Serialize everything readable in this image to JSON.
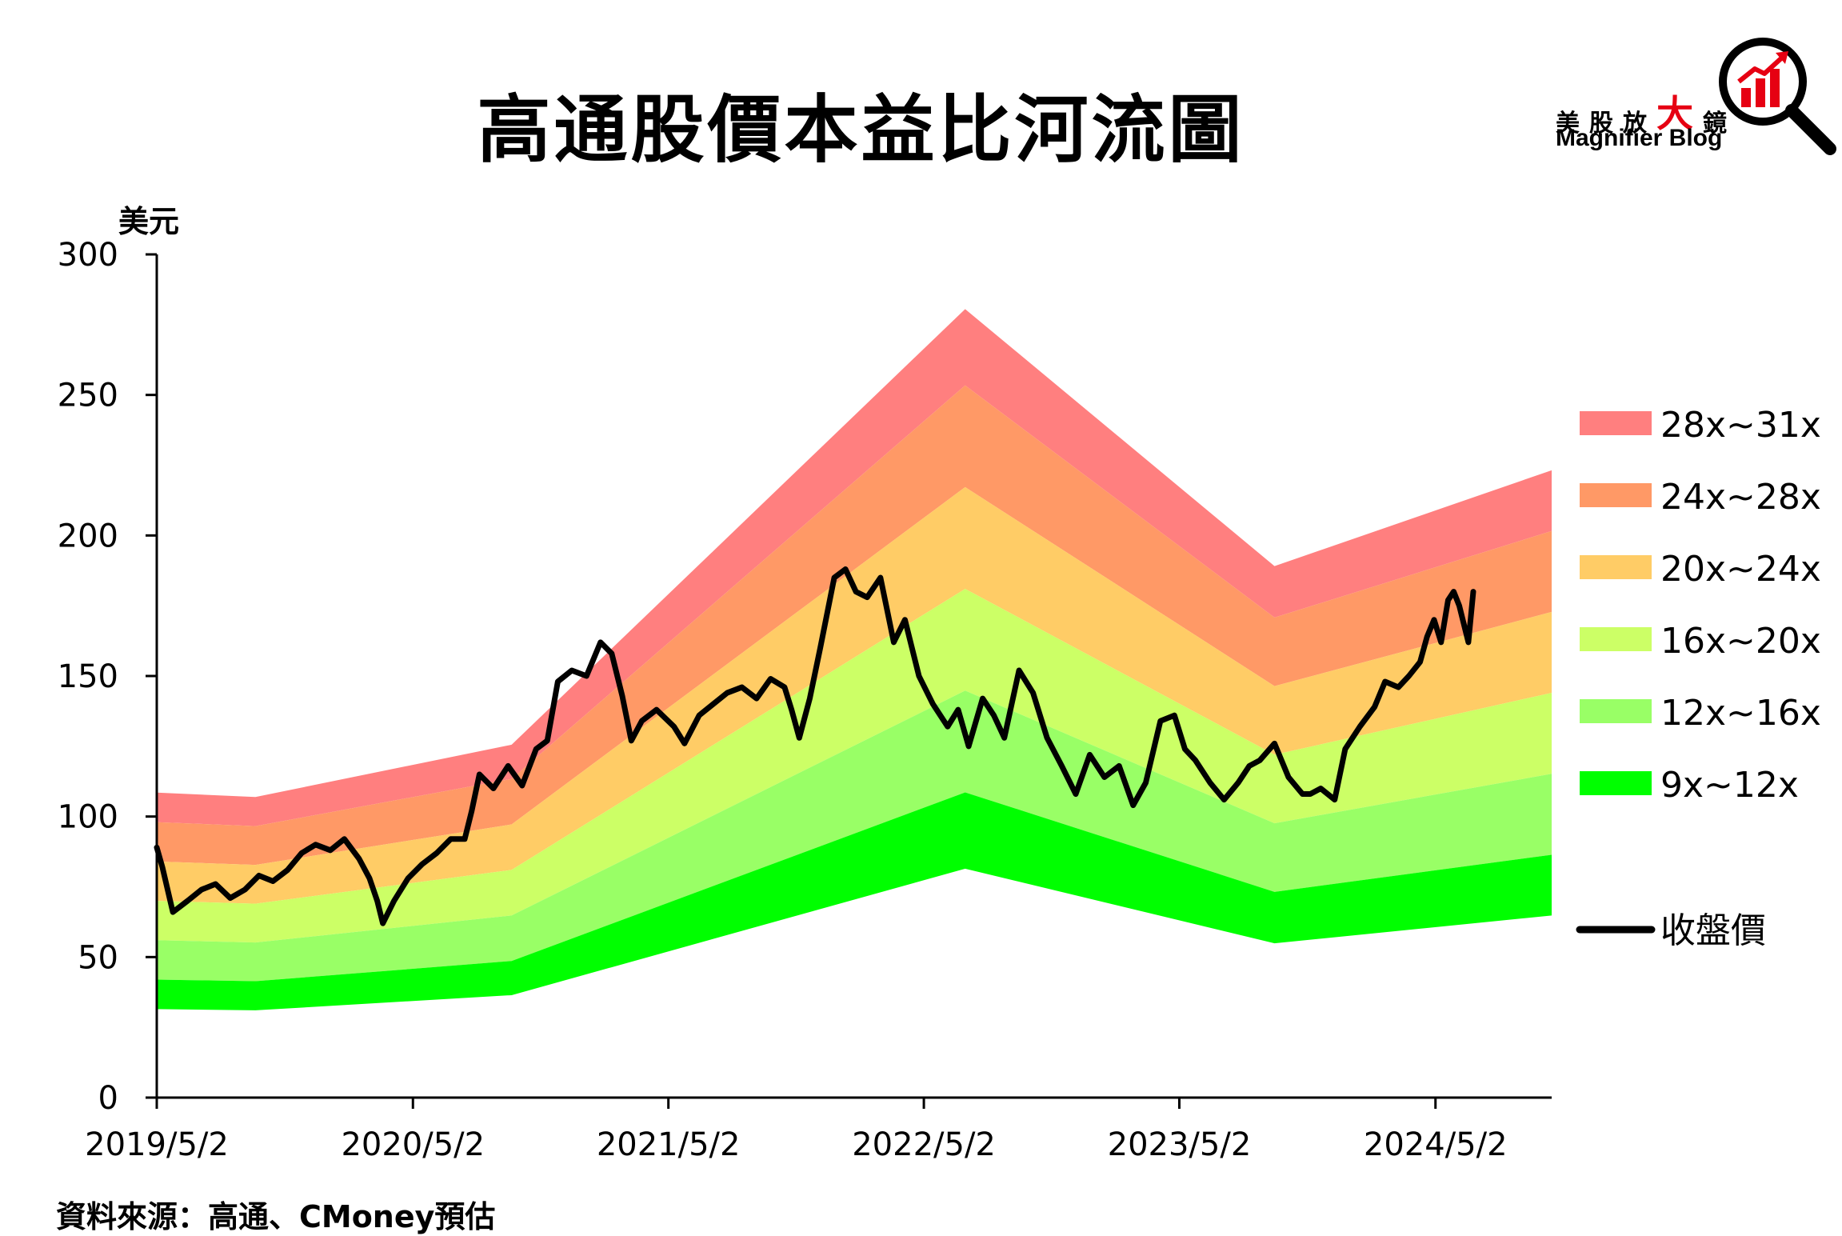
{
  "title": "高通股價本益比河流圖",
  "brand": {
    "cn_prefix": "美股放",
    "cn_big": "大",
    "cn_suffix": "鏡",
    "en": "Magnifier Blog",
    "accent": "#e60012"
  },
  "source": "資料來源：高通、CMoney預估",
  "chart_data": {
    "type": "area",
    "ylabel": "美元",
    "ylim": [
      0,
      300
    ],
    "yticks": [
      "0",
      "50",
      "100",
      "150",
      "200",
      "250",
      "300"
    ],
    "xticks": [
      "2019/5/2",
      "2020/5/2",
      "2021/5/2",
      "2022/5/2",
      "2023/5/2",
      "2024/5/2"
    ],
    "xrange": [
      "2019/5/2",
      "2024/10/15"
    ],
    "eps_dates": [
      "2019/5/2",
      "2019/9/20",
      "2020/9/20",
      "2022/6/30",
      "2023/9/15",
      "2024/10/15"
    ],
    "eps": [
      3.5,
      3.45,
      4.05,
      9.05,
      6.1,
      7.2
    ],
    "bands": [
      {
        "name": "28x~31x",
        "low": 28,
        "high": 31,
        "color": "#ff7f7f"
      },
      {
        "name": "24x~28x",
        "low": 24,
        "high": 28,
        "color": "#ff9966"
      },
      {
        "name": "20x~24x",
        "low": 20,
        "high": 24,
        "color": "#ffcc66"
      },
      {
        "name": "16x~20x",
        "low": 16,
        "high": 20,
        "color": "#ccff66"
      },
      {
        "name": "12x~16x",
        "low": 12,
        "high": 16,
        "color": "#99ff66"
      },
      {
        "name": "9x~12x",
        "low": 9,
        "high": 12,
        "color": "#00ff00"
      }
    ],
    "price_series_name": "收盤價",
    "price_color": "#000000",
    "price_dates": [
      "2019/5/2",
      "2019/5/10",
      "2019/5/25",
      "2019/6/15",
      "2019/7/5",
      "2019/7/25",
      "2019/8/15",
      "2019/9/5",
      "2019/9/25",
      "2019/10/15",
      "2019/11/5",
      "2019/11/25",
      "2019/12/15",
      "2020/1/5",
      "2020/1/25",
      "2020/2/15",
      "2020/3/1",
      "2020/3/12",
      "2020/3/20",
      "2020/4/5",
      "2020/4/25",
      "2020/5/15",
      "2020/6/5",
      "2020/6/25",
      "2020/7/15",
      "2020/7/25",
      "2020/8/5",
      "2020/8/25",
      "2020/9/15",
      "2020/10/5",
      "2020/10/25",
      "2020/11/10",
      "2020/11/25",
      "2020/12/15",
      "2021/1/5",
      "2021/1/25",
      "2021/2/10",
      "2021/2/25",
      "2021/3/10",
      "2021/3/25",
      "2021/4/15",
      "2021/5/10",
      "2021/5/25",
      "2021/6/15",
      "2021/7/5",
      "2021/7/25",
      "2021/8/15",
      "2021/9/5",
      "2021/9/25",
      "2021/10/15",
      "2021/10/25",
      "2021/11/5",
      "2021/11/20",
      "2021/12/5",
      "2021/12/25",
      "2022/1/10",
      "2022/1/25",
      "2022/2/10",
      "2022/3/1",
      "2022/3/20",
      "2022/4/5",
      "2022/4/25",
      "2022/5/15",
      "2022/6/5",
      "2022/6/20",
      "2022/7/5",
      "2022/7/25",
      "2022/8/10",
      "2022/8/25",
      "2022/9/15",
      "2022/10/5",
      "2022/10/25",
      "2022/11/15",
      "2022/12/5",
      "2022/12/25",
      "2023/1/15",
      "2023/2/5",
      "2023/2/25",
      "2023/3/15",
      "2023/4/5",
      "2023/4/25",
      "2023/5/10",
      "2023/5/25",
      "2023/6/15",
      "2023/7/5",
      "2023/7/25",
      "2023/8/10",
      "2023/8/25",
      "2023/9/15",
      "2023/10/5",
      "2023/10/25",
      "2023/11/5",
      "2023/11/20",
      "2023/12/10",
      "2023/12/25",
      "2024/1/15",
      "2024/2/5",
      "2024/2/20",
      "2024/3/10",
      "2024/3/25",
      "2024/4/10",
      "2024/4/20",
      "2024/4/30",
      "2024/5/10",
      "2024/5/20",
      "2024/5/28",
      "2024/6/5",
      "2024/6/10",
      "2024/6/18",
      "2024/6/25"
    ],
    "price_values": [
      89,
      82,
      66,
      70,
      74,
      76,
      71,
      74,
      79,
      77,
      81,
      87,
      90,
      88,
      92,
      85,
      78,
      70,
      62,
      70,
      78,
      83,
      87,
      92,
      92,
      102,
      115,
      110,
      118,
      111,
      124,
      127,
      148,
      152,
      150,
      162,
      158,
      143,
      127,
      134,
      138,
      132,
      126,
      136,
      140,
      144,
      146,
      142,
      149,
      146,
      138,
      128,
      142,
      160,
      185,
      188,
      180,
      178,
      185,
      162,
      170,
      150,
      140,
      132,
      138,
      125,
      142,
      136,
      128,
      152,
      144,
      128,
      118,
      108,
      122,
      114,
      118,
      104,
      112,
      134,
      136,
      124,
      120,
      112,
      106,
      112,
      118,
      120,
      126,
      114,
      108,
      108,
      110,
      106,
      124,
      132,
      139,
      148,
      146,
      150,
      155,
      164,
      170,
      162,
      177,
      180,
      175,
      170,
      162,
      180
    ]
  }
}
